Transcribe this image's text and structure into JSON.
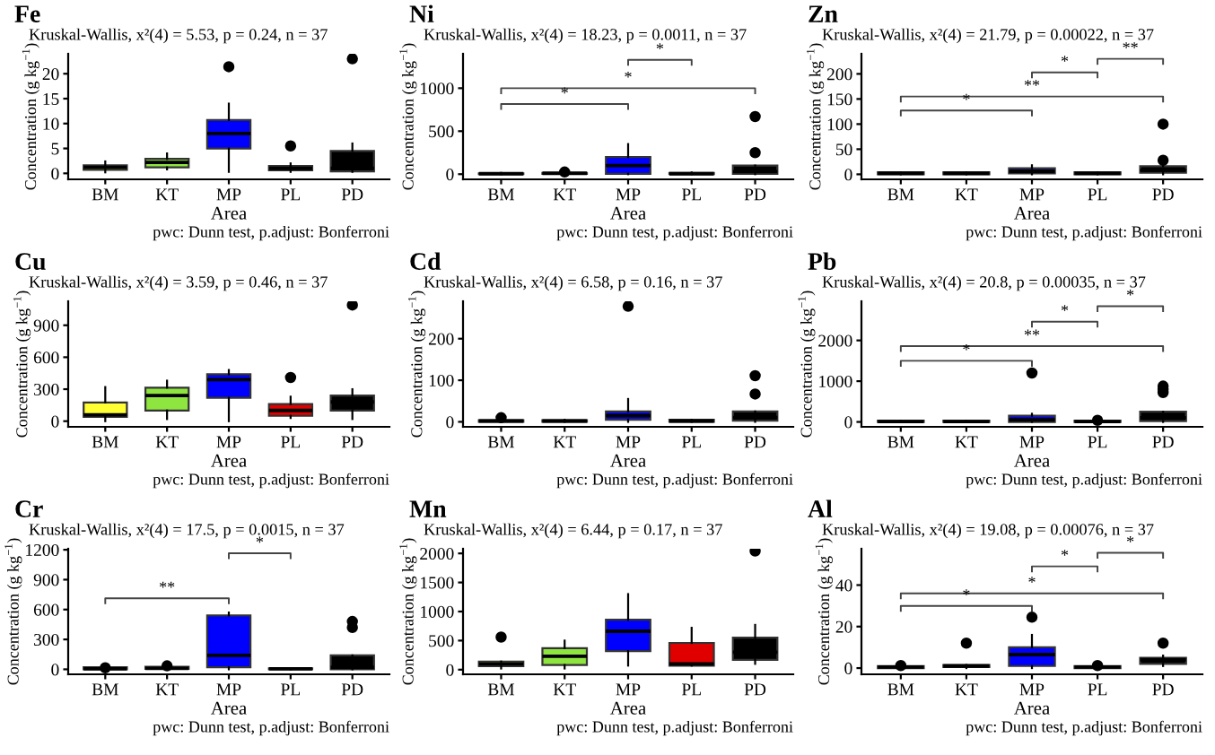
{
  "chart_data": [
    {
      "type": "box",
      "title": "Fe",
      "subtitle": "Kruskal-Wallis, x²(4) = 5.53, p = 0.24, n = 37",
      "xlabel": "Area",
      "ylabel": "Concentration (g kg$^{−1}$)",
      "categories": [
        "BM",
        "KT",
        "MP",
        "PL",
        "PD"
      ],
      "colors": [
        "#ffff33",
        "#8ee53f",
        "#0000ff",
        "#e00000",
        "#000000"
      ],
      "ylim": [
        -1.2,
        24
      ],
      "yticks": [
        0,
        5,
        10,
        15,
        20
      ],
      "boxes": [
        {
          "low": 0.2,
          "q1": 0.7,
          "median": 1.2,
          "q3": 1.6,
          "high": 2.4
        },
        {
          "low": 0.8,
          "q1": 1.2,
          "median": 2.2,
          "q3": 2.9,
          "high": 4.0
        },
        {
          "low": 0.3,
          "q1": 5.0,
          "median": 8.0,
          "q3": 10.7,
          "high": 14.0,
          "outliers": [
            21.4
          ]
        },
        {
          "low": 0.3,
          "q1": 0.6,
          "median": 1.0,
          "q3": 1.5,
          "high": 2.0,
          "outliers": [
            5.5
          ]
        },
        {
          "low": 0.3,
          "q1": 0.4,
          "median": 1.0,
          "q3": 4.5,
          "high": 6.0,
          "outliers": [
            23
          ]
        }
      ],
      "annotations": [
        "pwc: Dunn test, p.adjust: Bonferroni"
      ]
    },
    {
      "type": "box",
      "title": "Ni",
      "subtitle": "Kruskal-Wallis, x²(4) = 18.23, p = 0.0011, n = 37",
      "xlabel": "Area",
      "ylabel": "Concentration (g kg$^{−1}$)",
      "categories": [
        "BM",
        "KT",
        "MP",
        "PL",
        "PD"
      ],
      "colors": [
        "#ffff33",
        "#8ee53f",
        "#0000ff",
        "#e00000",
        "#000000"
      ],
      "ylim": [
        -60,
        1400
      ],
      "yticks": [
        0,
        500,
        1000
      ],
      "boxes": [
        {
          "low": 0,
          "q1": 0,
          "median": 5,
          "q3": 10,
          "high": 15
        },
        {
          "low": 0,
          "q1": 5,
          "median": 10,
          "q3": 15,
          "high": 20,
          "outliers": [
            25
          ]
        },
        {
          "low": 0,
          "q1": 5,
          "median": 100,
          "q3": 200,
          "high": 350
        },
        {
          "low": 0,
          "q1": 0,
          "median": 5,
          "q3": 15,
          "high": 20
        },
        {
          "low": 0,
          "q1": 5,
          "median": 30,
          "q3": 100,
          "high": 100,
          "outliers": [
            250,
            670
          ]
        }
      ],
      "annotations": [
        "*",
        "*",
        "*",
        "pwc: Dunn test, p.adjust: Bonferroni"
      ]
    },
    {
      "type": "box",
      "title": "Zn",
      "subtitle": "Kruskal-Wallis, x²(4) = 21.79, p = 0.00022, n = 37",
      "xlabel": "Area",
      "ylabel": "Concentration (g kg$^{−1}$)",
      "categories": [
        "BM",
        "KT",
        "MP",
        "PL",
        "PD"
      ],
      "colors": [
        "#ffff33",
        "#8ee53f",
        "#0000ff",
        "#e00000",
        "#000000"
      ],
      "ylim": [
        -10,
        240
      ],
      "yticks": [
        0,
        50,
        100,
        150,
        200
      ],
      "boxes": [
        {
          "low": 0,
          "q1": 0,
          "median": 2,
          "q3": 4,
          "high": 4
        },
        {
          "low": 0,
          "q1": 0,
          "median": 2,
          "q3": 4,
          "high": 4
        },
        {
          "low": 0,
          "q1": 2,
          "median": 6,
          "q3": 12,
          "high": 18
        },
        {
          "low": 0,
          "q1": 0,
          "median": 2,
          "q3": 4,
          "high": 4
        },
        {
          "low": 0,
          "q1": 3,
          "median": 8,
          "q3": 16,
          "high": 20,
          "outliers": [
            28,
            100
          ]
        }
      ],
      "annotations": [
        "*",
        "**",
        "*",
        "**",
        "pwc: Dunn test, p.adjust: Bonferroni"
      ]
    },
    {
      "type": "box",
      "title": "Cu",
      "subtitle": "Kruskal-Wallis, x²(4) = 3.59, p = 0.46, n = 37",
      "xlabel": "Area",
      "ylabel": "Concentration (g kg$^{−1}$)",
      "categories": [
        "BM",
        "KT",
        "MP",
        "PL",
        "PD"
      ],
      "colors": [
        "#ffff33",
        "#8ee53f",
        "#0000ff",
        "#e00000",
        "#000000"
      ],
      "ylim": [
        -53,
        1125
      ],
      "yticks": [
        0,
        300,
        600,
        900
      ],
      "boxes": [
        {
          "low": 0,
          "q1": 40,
          "median": 60,
          "q3": 175,
          "high": 320
        },
        {
          "low": 20,
          "q1": 100,
          "median": 240,
          "q3": 315,
          "high": 380
        },
        {
          "low": 0,
          "q1": 220,
          "median": 390,
          "q3": 440,
          "high": 480
        },
        {
          "low": 30,
          "q1": 50,
          "median": 100,
          "q3": 160,
          "high": 230,
          "outliers": [
            410
          ]
        },
        {
          "low": 20,
          "q1": 100,
          "median": 180,
          "q3": 240,
          "high": 300,
          "outliers": [
            1090
          ]
        }
      ],
      "annotations": [
        "pwc: Dunn test, p.adjust: Bonferroni"
      ]
    },
    {
      "type": "box",
      "title": "Cd",
      "subtitle": "Kruskal-Wallis, x²(4) = 6.58, p = 0.16, n = 37",
      "xlabel": "Area",
      "ylabel": "Concentration (g kg$^{−1}$)",
      "categories": [
        "BM",
        "KT",
        "MP",
        "PL",
        "PD"
      ],
      "colors": [
        "#ffff33",
        "#8ee53f",
        "#0000ff",
        "#e00000",
        "#000000"
      ],
      "ylim": [
        -12,
        290
      ],
      "yticks": [
        0,
        100,
        200
      ],
      "boxes": [
        {
          "low": 0,
          "q1": 0,
          "median": 2,
          "q3": 4,
          "high": 5,
          "outliers": [
            10
          ]
        },
        {
          "low": 0,
          "q1": 0,
          "median": 2,
          "q3": 4,
          "high": 5
        },
        {
          "low": 0,
          "q1": 5,
          "median": 15,
          "q3": 25,
          "high": 55,
          "outliers": [
            278
          ]
        },
        {
          "low": 0,
          "q1": 0,
          "median": 2,
          "q3": 5,
          "high": 5
        },
        {
          "low": 0,
          "q1": 3,
          "median": 10,
          "q3": 25,
          "high": 25,
          "outliers": [
            67,
            111
          ]
        }
      ],
      "annotations": [
        "pwc: Dunn test, p.adjust: Bonferroni"
      ]
    },
    {
      "type": "box",
      "title": "Pb",
      "subtitle": "Kruskal-Wallis, x²(4) = 20.8, p = 0.00035, n = 37",
      "xlabel": "Area",
      "ylabel": "Concentration (g kg$^{−1}$)",
      "categories": [
        "BM",
        "KT",
        "MP",
        "PL",
        "PD"
      ],
      "colors": [
        "#ffff33",
        "#8ee53f",
        "#0000ff",
        "#e00000",
        "#000000"
      ],
      "ylim": [
        -120,
        2960
      ],
      "yticks": [
        0,
        1000,
        2000
      ],
      "boxes": [
        {
          "low": 0,
          "q1": 0,
          "median": 10,
          "q3": 30,
          "high": 30
        },
        {
          "low": 0,
          "q1": 0,
          "median": 10,
          "q3": 30,
          "high": 30
        },
        {
          "low": 0,
          "q1": 0,
          "median": 50,
          "q3": 150,
          "high": 200,
          "outliers": [
            1200
          ]
        },
        {
          "low": 0,
          "q1": 0,
          "median": 10,
          "q3": 30,
          "high": 30,
          "outliers": [
            40
          ]
        },
        {
          "low": 0,
          "q1": 20,
          "median": 100,
          "q3": 250,
          "high": 250,
          "outliers": [
            720,
            800,
            880
          ]
        }
      ],
      "annotations": [
        "*",
        "**",
        "*",
        "*",
        "pwc: Dunn test, p.adjust: Bonferroni"
      ]
    },
    {
      "type": "box",
      "title": "Cr",
      "subtitle": "Kruskal-Wallis, x²(4) = 17.5, p = 0.0015, n = 37",
      "xlabel": "Area",
      "ylabel": "Concentration (g kg$^{−1}$)",
      "categories": [
        "BM",
        "KT",
        "MP",
        "PL",
        "PD"
      ],
      "colors": [
        "#ffff33",
        "#8ee53f",
        "#0000ff",
        "#e00000",
        "#000000"
      ],
      "ylim": [
        -50,
        1210
      ],
      "yticks": [
        0,
        300,
        600,
        900,
        1200
      ],
      "boxes": [
        {
          "low": 0,
          "q1": 0,
          "median": 5,
          "q3": 20,
          "high": 20,
          "outliers": [
            15
          ]
        },
        {
          "low": 0,
          "q1": 5,
          "median": 10,
          "q3": 25,
          "high": 25,
          "outliers": [
            35
          ]
        },
        {
          "low": 0,
          "q1": 20,
          "median": 140,
          "q3": 540,
          "high": 570
        },
        {
          "low": 0,
          "q1": 0,
          "median": 5,
          "q3": 10,
          "high": 10
        },
        {
          "low": 0,
          "q1": 0,
          "median": 20,
          "q3": 140,
          "high": 140,
          "outliers": [
            420,
            480
          ]
        }
      ],
      "annotations": [
        "**",
        "*",
        "pwc: Dunn test, p.adjust: Bonferroni"
      ]
    },
    {
      "type": "box",
      "title": "Mn",
      "subtitle": "Kruskal-Wallis, x²(4) = 6.44, p = 0.17, n = 37",
      "xlabel": "Area",
      "ylabel": "Concentration (g kg$^{−1}$)",
      "categories": [
        "BM",
        "KT",
        "MP",
        "PL",
        "PD"
      ],
      "colors": [
        "#ffff33",
        "#8ee53f",
        "#0000ff",
        "#e00000",
        "#000000"
      ],
      "ylim": [
        -80,
        2080
      ],
      "yticks": [
        0,
        500,
        1000,
        1500,
        2000
      ],
      "boxes": [
        {
          "low": 20,
          "q1": 60,
          "median": 100,
          "q3": 140,
          "high": 140,
          "outliers": [
            560
          ]
        },
        {
          "low": 20,
          "q1": 80,
          "median": 230,
          "q3": 370,
          "high": 500
        },
        {
          "low": 70,
          "q1": 320,
          "median": 660,
          "q3": 860,
          "high": 1300
        },
        {
          "low": 70,
          "q1": 70,
          "median": 100,
          "q3": 460,
          "high": 720
        },
        {
          "low": 100,
          "q1": 170,
          "median": 300,
          "q3": 550,
          "high": 770,
          "outliers": [
            2040
          ]
        }
      ],
      "annotations": [
        "pwc: Dunn test, p.adjust: Bonferroni"
      ]
    },
    {
      "type": "box",
      "title": "Al",
      "subtitle": "Kruskal-Wallis, x²(4) = 19.08, p = 0.00076, n = 37",
      "xlabel": "Area",
      "ylabel": "Concentration (g kg$^{−1}$)",
      "categories": [
        "BM",
        "KT",
        "MP",
        "PL",
        "PD"
      ],
      "colors": [
        "#ffff33",
        "#8ee53f",
        "#0000ff",
        "#e00000",
        "#000000"
      ],
      "ylim": [
        -3,
        57.5
      ],
      "yticks": [
        0,
        20,
        40
      ],
      "boxes": [
        {
          "low": 0,
          "q1": 0,
          "median": 0.5,
          "q3": 1,
          "high": 1,
          "outliers": [
            1.2
          ]
        },
        {
          "low": 0,
          "q1": 0.5,
          "median": 1,
          "q3": 1.5,
          "high": 1.5,
          "outliers": [
            12
          ]
        },
        {
          "low": 0,
          "q1": 1,
          "median": 6.5,
          "q3": 10,
          "high": 16,
          "outliers": [
            24.5
          ]
        },
        {
          "low": 0,
          "q1": 0,
          "median": 0.5,
          "q3": 1,
          "high": 1,
          "outliers": [
            1.2
          ]
        },
        {
          "low": 1,
          "q1": 2,
          "median": 4,
          "q3": 5,
          "high": 6,
          "outliers": [
            12
          ]
        }
      ],
      "annotations": [
        "*",
        "*",
        "*",
        "*",
        "pwc: Dunn test, p.adjust: Bonferroni"
      ]
    }
  ]
}
